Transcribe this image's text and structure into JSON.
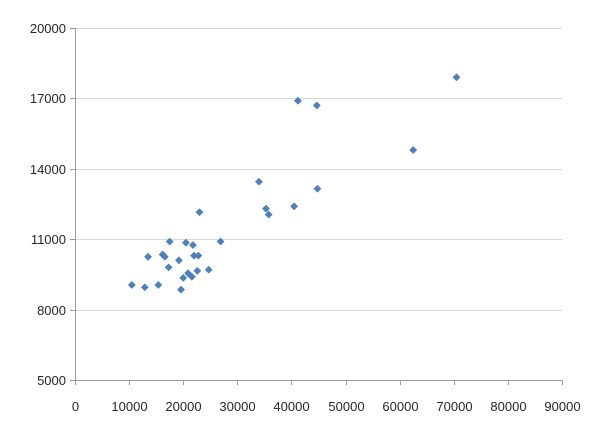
{
  "chart_data": {
    "type": "scatter",
    "title": "",
    "xlabel": "",
    "ylabel": "",
    "xlim": [
      0,
      90000
    ],
    "ylim": [
      5000,
      20000
    ],
    "x_ticks": [
      0,
      10000,
      20000,
      30000,
      40000,
      50000,
      60000,
      70000,
      80000,
      90000
    ],
    "y_ticks": [
      5000,
      8000,
      11000,
      14000,
      17000,
      20000
    ],
    "x_tick_labels": [
      "0",
      "10000",
      "20000",
      "30000",
      "40000",
      "50000",
      "60000",
      "70000",
      "80000",
      "90000"
    ],
    "y_tick_labels": [
      "5000",
      "8000",
      "11000",
      "14000",
      "17000",
      "20000"
    ],
    "grid": "horizontal",
    "legend": "none",
    "marker": "diamond",
    "marker_color": "#4f81bd",
    "points": [
      {
        "x": 10500,
        "y": 9050
      },
      {
        "x": 12900,
        "y": 8950
      },
      {
        "x": 13500,
        "y": 10250
      },
      {
        "x": 15400,
        "y": 9050
      },
      {
        "x": 16200,
        "y": 10350
      },
      {
        "x": 16600,
        "y": 10250
      },
      {
        "x": 17300,
        "y": 9800
      },
      {
        "x": 17500,
        "y": 10900
      },
      {
        "x": 19200,
        "y": 10100
      },
      {
        "x": 19600,
        "y": 8850
      },
      {
        "x": 20000,
        "y": 9350
      },
      {
        "x": 20500,
        "y": 10850
      },
      {
        "x": 20900,
        "y": 9550
      },
      {
        "x": 21600,
        "y": 9400
      },
      {
        "x": 21800,
        "y": 10750
      },
      {
        "x": 22000,
        "y": 10300
      },
      {
        "x": 22600,
        "y": 9650
      },
      {
        "x": 22800,
        "y": 10300
      },
      {
        "x": 23000,
        "y": 12150
      },
      {
        "x": 24700,
        "y": 9700
      },
      {
        "x": 26900,
        "y": 10900
      },
      {
        "x": 34000,
        "y": 13450
      },
      {
        "x": 35300,
        "y": 12300
      },
      {
        "x": 35800,
        "y": 12050
      },
      {
        "x": 40500,
        "y": 12400
      },
      {
        "x": 41200,
        "y": 16900
      },
      {
        "x": 44700,
        "y": 16700
      },
      {
        "x": 44800,
        "y": 13150
      },
      {
        "x": 62500,
        "y": 14800
      },
      {
        "x": 70500,
        "y": 17900
      }
    ]
  }
}
